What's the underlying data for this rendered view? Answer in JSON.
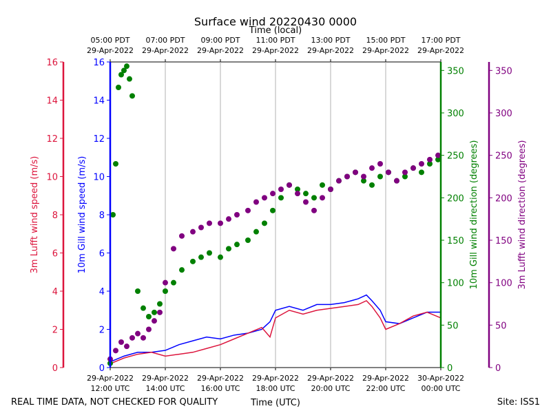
{
  "chart_data": {
    "type": "line+scatter",
    "title": "Surface wind 20220430 0000",
    "top_axis_label": "Time (local)",
    "xlabel": "Time (UTC)",
    "footer_left": "REAL TIME DATA, NOT CHECKED FOR QUALITY",
    "footer_right": "Site: ISS1",
    "x_hours": [
      12,
      24
    ],
    "x_ticks_bottom": [
      {
        "hour": 12,
        "line1": "29-Apr-2022",
        "line2": "12:00 UTC"
      },
      {
        "hour": 14,
        "line1": "29-Apr-2022",
        "line2": "14:00 UTC"
      },
      {
        "hour": 16,
        "line1": "29-Apr-2022",
        "line2": "16:00 UTC"
      },
      {
        "hour": 18,
        "line1": "29-Apr-2022",
        "line2": "18:00 UTC"
      },
      {
        "hour": 20,
        "line1": "29-Apr-2022",
        "line2": "20:00 UTC"
      },
      {
        "hour": 22,
        "line1": "29-Apr-2022",
        "line2": "22:00 UTC"
      },
      {
        "hour": 24,
        "line1": "30-Apr-2022",
        "line2": "00:00 UTC"
      }
    ],
    "x_ticks_top": [
      {
        "hour": 12,
        "line1": "05:00 PDT",
        "line2": "29-Apr-2022"
      },
      {
        "hour": 14,
        "line1": "07:00 PDT",
        "line2": "29-Apr-2022"
      },
      {
        "hour": 16,
        "line1": "09:00 PDT",
        "line2": "29-Apr-2022"
      },
      {
        "hour": 18,
        "line1": "11:00 PDT",
        "line2": "29-Apr-2022"
      },
      {
        "hour": 20,
        "line1": "13:00 PDT",
        "line2": "29-Apr-2022"
      },
      {
        "hour": 22,
        "line1": "15:00 PDT",
        "line2": "29-Apr-2022"
      },
      {
        "hour": 24,
        "line1": "17:00 PDT",
        "line2": "29-Apr-2022"
      }
    ],
    "axes": {
      "lufft_speed": {
        "label": "3m Lufft wind speed (m/s)",
        "color": "#dc143c",
        "ylim": [
          0,
          16
        ],
        "ticks": [
          0,
          2,
          4,
          6,
          8,
          10,
          12,
          14,
          16
        ]
      },
      "gill_speed": {
        "label": "10m Gill wind speed (m/s)",
        "color": "#0000ff",
        "ylim": [
          0,
          16
        ],
        "ticks": [
          0,
          2,
          4,
          6,
          8,
          10,
          12,
          14,
          16
        ]
      },
      "gill_dir": {
        "label": "10m Gill wind direction (degrees)",
        "color": "#008000",
        "ylim": [
          0,
          360
        ],
        "ticks": [
          0,
          50,
          100,
          150,
          200,
          250,
          300,
          350
        ]
      },
      "lufft_dir": {
        "label": "3m Lufft wind direction (degrees)",
        "color": "#800080",
        "ylim": [
          0,
          360
        ],
        "ticks": [
          0,
          50,
          100,
          150,
          200,
          250,
          300,
          350
        ]
      }
    },
    "series": [
      {
        "name": "10m Gill wind speed",
        "axis": "gill_speed",
        "kind": "line",
        "x": [
          12.0,
          12.5,
          13.0,
          13.5,
          14.0,
          14.5,
          15.0,
          15.5,
          16.0,
          16.5,
          17.0,
          17.5,
          17.8,
          18.0,
          18.5,
          19.0,
          19.5,
          20.0,
          20.5,
          21.0,
          21.3,
          21.5,
          21.8,
          22.0,
          22.5,
          23.0,
          23.5,
          24.0
        ],
        "values": [
          0.3,
          0.6,
          0.8,
          0.8,
          0.9,
          1.2,
          1.4,
          1.6,
          1.5,
          1.7,
          1.8,
          2.0,
          2.4,
          3.0,
          3.2,
          3.0,
          3.3,
          3.3,
          3.4,
          3.6,
          3.8,
          3.5,
          3.0,
          2.4,
          2.3,
          2.6,
          2.9,
          2.9
        ]
      },
      {
        "name": "3m Lufft wind speed",
        "axis": "lufft_speed",
        "kind": "line",
        "x": [
          12.0,
          12.5,
          13.0,
          13.5,
          14.0,
          14.5,
          15.0,
          15.5,
          16.0,
          16.5,
          17.0,
          17.5,
          17.8,
          18.0,
          18.5,
          19.0,
          19.5,
          20.0,
          20.5,
          21.0,
          21.3,
          21.5,
          21.8,
          22.0,
          22.5,
          23.0,
          23.5,
          24.0
        ],
        "values": [
          0.2,
          0.5,
          0.7,
          0.8,
          0.6,
          0.7,
          0.8,
          1.0,
          1.2,
          1.5,
          1.8,
          2.1,
          1.6,
          2.6,
          3.0,
          2.8,
          3.0,
          3.1,
          3.2,
          3.3,
          3.5,
          3.2,
          2.6,
          2.0,
          2.3,
          2.7,
          2.9,
          2.6
        ]
      },
      {
        "name": "10m Gill wind direction",
        "axis": "gill_dir",
        "kind": "scatter",
        "x": [
          12.0,
          12.1,
          12.2,
          12.3,
          12.4,
          12.5,
          12.6,
          12.7,
          12.8,
          13.0,
          13.2,
          13.4,
          13.6,
          13.8,
          14.0,
          14.3,
          14.6,
          15.0,
          15.3,
          15.6,
          16.0,
          16.3,
          16.6,
          17.0,
          17.3,
          17.6,
          17.9,
          18.2,
          18.5,
          18.8,
          19.1,
          19.4,
          19.7,
          20.0,
          20.3,
          20.6,
          20.9,
          21.2,
          21.5,
          21.8,
          22.1,
          22.4,
          22.7,
          23.0,
          23.3,
          23.6,
          23.9
        ],
        "values": [
          5,
          180,
          240,
          330,
          345,
          350,
          355,
          340,
          320,
          90,
          70,
          60,
          65,
          75,
          90,
          100,
          115,
          125,
          130,
          135,
          130,
          140,
          145,
          150,
          160,
          170,
          185,
          200,
          215,
          210,
          205,
          200,
          215,
          210,
          220,
          225,
          230,
          220,
          215,
          225,
          230,
          220,
          225,
          235,
          230,
          240,
          245
        ]
      },
      {
        "name": "3m Lufft wind direction",
        "axis": "lufft_dir",
        "kind": "scatter",
        "x": [
          12.0,
          12.2,
          12.4,
          12.6,
          12.8,
          13.0,
          13.2,
          13.4,
          13.6,
          13.8,
          14.0,
          14.3,
          14.6,
          15.0,
          15.3,
          15.6,
          16.0,
          16.3,
          16.6,
          17.0,
          17.3,
          17.6,
          17.9,
          18.2,
          18.5,
          18.8,
          19.1,
          19.4,
          19.7,
          20.0,
          20.3,
          20.6,
          20.9,
          21.2,
          21.5,
          21.8,
          22.1,
          22.4,
          22.7,
          23.0,
          23.3,
          23.6,
          23.9
        ],
        "values": [
          10,
          20,
          30,
          25,
          35,
          40,
          35,
          45,
          55,
          65,
          100,
          140,
          155,
          160,
          165,
          170,
          170,
          175,
          180,
          185,
          195,
          200,
          205,
          210,
          215,
          205,
          195,
          185,
          200,
          210,
          220,
          225,
          230,
          225,
          235,
          240,
          230,
          220,
          230,
          235,
          240,
          245,
          250
        ]
      }
    ]
  }
}
